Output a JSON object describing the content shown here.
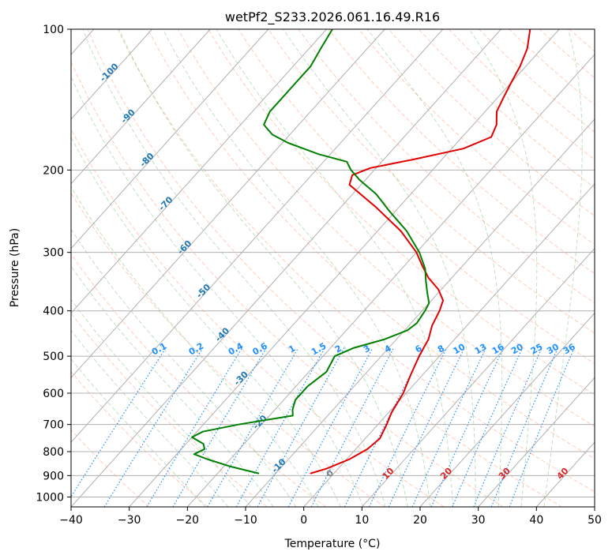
{
  "chart_data": {
    "type": "line",
    "title": "wetPf2_S233.2026.061.16.49.R16",
    "xlabel": "Temperature (°C)",
    "ylabel": "Pressure (hPa)",
    "xlim": [
      -40,
      50
    ],
    "ylim": [
      1050,
      100
    ],
    "y_scale": "log",
    "grid": true,
    "x_ticks": [
      -40,
      -30,
      -20,
      -10,
      0,
      10,
      20,
      30,
      40,
      50
    ],
    "y_ticks": [
      100,
      200,
      300,
      400,
      500,
      600,
      700,
      800,
      900,
      1000
    ],
    "series": [
      {
        "role": "temperature",
        "color": "#e00000",
        "points": [
          {
            "p": 890,
            "t": -4
          },
          {
            "p": 870,
            "t": -2
          },
          {
            "p": 830,
            "t": 0.5
          },
          {
            "p": 790,
            "t": 2
          },
          {
            "p": 750,
            "t": 2.5
          },
          {
            "p": 700,
            "t": 1.5
          },
          {
            "p": 660,
            "t": 0.5
          },
          {
            "p": 600,
            "t": -0.5
          },
          {
            "p": 550,
            "t": -2
          },
          {
            "p": 500,
            "t": -3.5
          },
          {
            "p": 460,
            "t": -4.5
          },
          {
            "p": 430,
            "t": -6
          },
          {
            "p": 400,
            "t": -7
          },
          {
            "p": 380,
            "t": -8
          },
          {
            "p": 360,
            "t": -10.5
          },
          {
            "p": 340,
            "t": -14
          },
          {
            "p": 320,
            "t": -17
          },
          {
            "p": 300,
            "t": -20
          },
          {
            "p": 270,
            "t": -26
          },
          {
            "p": 240,
            "t": -34
          },
          {
            "p": 215,
            "t": -42
          },
          {
            "p": 205,
            "t": -43
          },
          {
            "p": 198,
            "t": -41
          },
          {
            "p": 190,
            "t": -35
          },
          {
            "p": 180,
            "t": -28
          },
          {
            "p": 170,
            "t": -25
          },
          {
            "p": 160,
            "t": -26
          },
          {
            "p": 150,
            "t": -28
          },
          {
            "p": 140,
            "t": -29
          },
          {
            "p": 130,
            "t": -30
          },
          {
            "p": 120,
            "t": -31
          },
          {
            "p": 110,
            "t": -32.5
          },
          {
            "p": 100,
            "t": -35
          }
        ]
      },
      {
        "role": "dewpoint",
        "color": "#008000",
        "points": [
          {
            "p": 890,
            "t": -13
          },
          {
            "p": 860,
            "t": -19
          },
          {
            "p": 830,
            "t": -24
          },
          {
            "p": 810,
            "t": -27
          },
          {
            "p": 790,
            "t": -26
          },
          {
            "p": 770,
            "t": -27
          },
          {
            "p": 745,
            "t": -30
          },
          {
            "p": 725,
            "t": -29
          },
          {
            "p": 700,
            "t": -24
          },
          {
            "p": 670,
            "t": -16
          },
          {
            "p": 650,
            "t": -17
          },
          {
            "p": 620,
            "t": -18
          },
          {
            "p": 580,
            "t": -18
          },
          {
            "p": 540,
            "t": -17
          },
          {
            "p": 500,
            "t": -18
          },
          {
            "p": 480,
            "t": -16
          },
          {
            "p": 460,
            "t": -12
          },
          {
            "p": 440,
            "t": -9.5
          },
          {
            "p": 425,
            "t": -9
          },
          {
            "p": 400,
            "t": -9.5
          },
          {
            "p": 385,
            "t": -10
          },
          {
            "p": 365,
            "t": -12
          },
          {
            "p": 345,
            "t": -14
          },
          {
            "p": 325,
            "t": -16
          },
          {
            "p": 300,
            "t": -19.5
          },
          {
            "p": 270,
            "t": -25
          },
          {
            "p": 245,
            "t": -31
          },
          {
            "p": 225,
            "t": -36
          },
          {
            "p": 210,
            "t": -41
          },
          {
            "p": 200,
            "t": -44
          },
          {
            "p": 192,
            "t": -46
          },
          {
            "p": 185,
            "t": -52
          },
          {
            "p": 175,
            "t": -59
          },
          {
            "p": 168,
            "t": -63
          },
          {
            "p": 160,
            "t": -66
          },
          {
            "p": 150,
            "t": -67
          },
          {
            "p": 140,
            "t": -67
          },
          {
            "p": 130,
            "t": -67
          },
          {
            "p": 120,
            "t": -67
          },
          {
            "p": 110,
            "t": -68
          },
          {
            "p": 100,
            "t": -69
          }
        ]
      }
    ],
    "isotherm_labels": [
      "-100",
      "-90",
      "-80",
      "-70",
      "-60",
      "-50",
      "-40",
      "-30",
      "-20",
      "-10",
      "0",
      "10",
      "20",
      "30",
      "40"
    ],
    "mixing_ratio_labels": [
      "0.1",
      "0.2",
      "0.4",
      "0.6",
      "1",
      "1.5",
      "2",
      "3",
      "4",
      "6",
      "8",
      "10",
      "13",
      "16",
      "20",
      "25",
      "30",
      "36"
    ],
    "colors": {
      "isotherm_cold": "#1f77b4",
      "isotherm_warm": "#d62728",
      "isotherm_zero": "#808080",
      "mixing_ratio": "#1e90ff",
      "dry_adiabat": "#ff7f50",
      "moist_adiabat": "#2ca02c",
      "grid": "#b0b0b0"
    }
  }
}
